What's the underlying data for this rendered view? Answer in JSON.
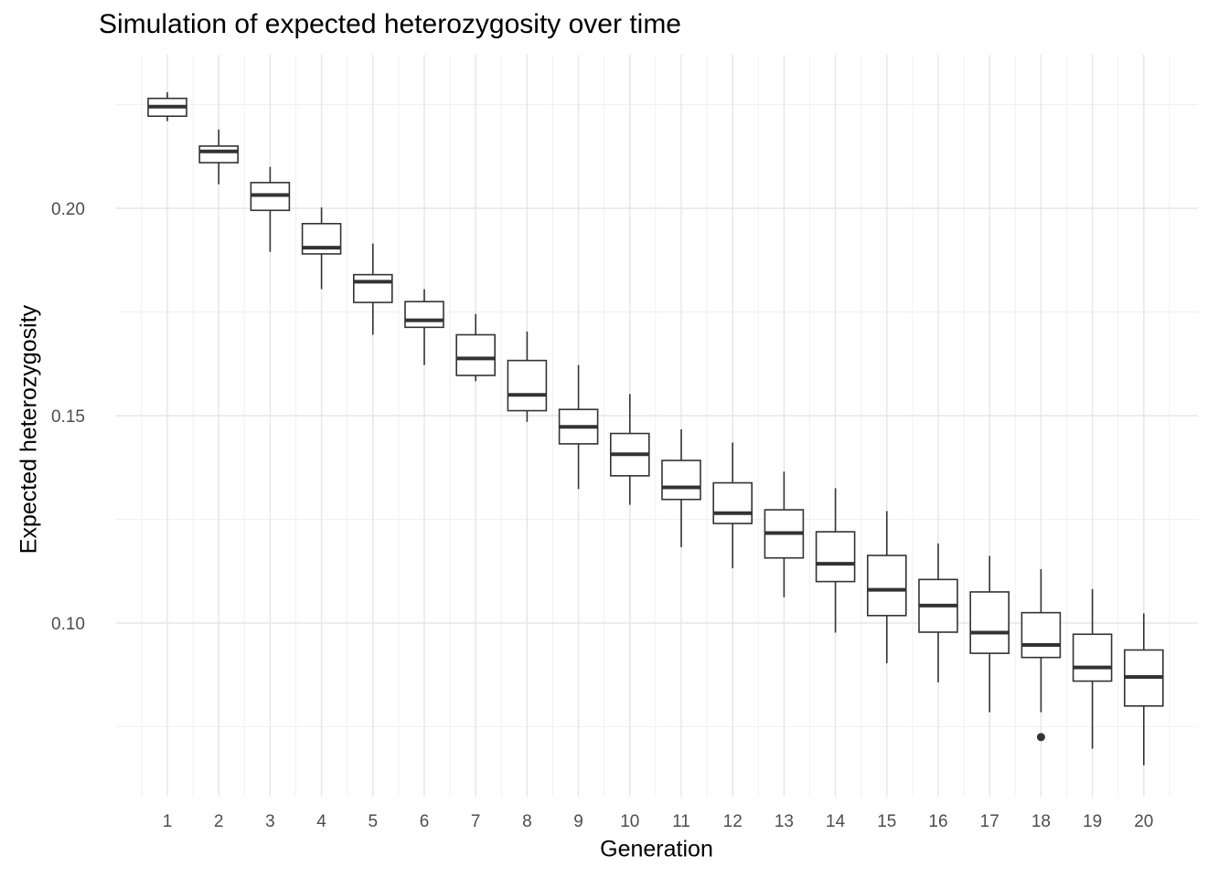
{
  "chart_data": {
    "type": "boxplot",
    "title": "Simulation of expected heterozygosity over time",
    "xlabel": "Generation",
    "ylabel": "Expected heterozygosity",
    "grid": true,
    "ylim": [
      0.065,
      0.232
    ],
    "y_ticks": [
      {
        "value": 0.1,
        "label": "0.10"
      },
      {
        "value": 0.15,
        "label": "0.15"
      },
      {
        "value": 0.2,
        "label": "0.20"
      }
    ],
    "categories": [
      "1",
      "2",
      "3",
      "4",
      "5",
      "6",
      "7",
      "8",
      "9",
      "10",
      "11",
      "12",
      "13",
      "14",
      "15",
      "16",
      "17",
      "18",
      "19",
      "20"
    ],
    "boxes": [
      {
        "min": 0.221,
        "q1": 0.2222,
        "median": 0.2245,
        "q3": 0.2265,
        "max": 0.228,
        "outliers": []
      },
      {
        "min": 0.2058,
        "q1": 0.211,
        "median": 0.2137,
        "q3": 0.215,
        "max": 0.219,
        "outliers": []
      },
      {
        "min": 0.1895,
        "q1": 0.1995,
        "median": 0.2032,
        "q3": 0.2062,
        "max": 0.21,
        "outliers": []
      },
      {
        "min": 0.1805,
        "q1": 0.189,
        "median": 0.1905,
        "q3": 0.1963,
        "max": 0.2002,
        "outliers": []
      },
      {
        "min": 0.1695,
        "q1": 0.1773,
        "median": 0.1823,
        "q3": 0.184,
        "max": 0.1915,
        "outliers": []
      },
      {
        "min": 0.1622,
        "q1": 0.1713,
        "median": 0.173,
        "q3": 0.1775,
        "max": 0.1805,
        "outliers": []
      },
      {
        "min": 0.1583,
        "q1": 0.1597,
        "median": 0.1638,
        "q3": 0.1695,
        "max": 0.1745,
        "outliers": []
      },
      {
        "min": 0.1485,
        "q1": 0.1512,
        "median": 0.155,
        "q3": 0.1633,
        "max": 0.1703,
        "outliers": []
      },
      {
        "min": 0.1323,
        "q1": 0.1432,
        "median": 0.1473,
        "q3": 0.1515,
        "max": 0.1622,
        "outliers": []
      },
      {
        "min": 0.1285,
        "q1": 0.1355,
        "median": 0.1407,
        "q3": 0.1457,
        "max": 0.1552,
        "outliers": []
      },
      {
        "min": 0.1183,
        "q1": 0.1298,
        "median": 0.1327,
        "q3": 0.1392,
        "max": 0.1467,
        "outliers": []
      },
      {
        "min": 0.1132,
        "q1": 0.124,
        "median": 0.1265,
        "q3": 0.1338,
        "max": 0.1435,
        "outliers": []
      },
      {
        "min": 0.1062,
        "q1": 0.1157,
        "median": 0.1217,
        "q3": 0.1273,
        "max": 0.1365,
        "outliers": []
      },
      {
        "min": 0.0977,
        "q1": 0.11,
        "median": 0.1143,
        "q3": 0.122,
        "max": 0.1325,
        "outliers": []
      },
      {
        "min": 0.0903,
        "q1": 0.1018,
        "median": 0.108,
        "q3": 0.1163,
        "max": 0.127,
        "outliers": []
      },
      {
        "min": 0.0857,
        "q1": 0.0978,
        "median": 0.1042,
        "q3": 0.1105,
        "max": 0.1192,
        "outliers": []
      },
      {
        "min": 0.0785,
        "q1": 0.0927,
        "median": 0.0977,
        "q3": 0.1075,
        "max": 0.1162,
        "outliers": []
      },
      {
        "min": 0.0785,
        "q1": 0.0917,
        "median": 0.0947,
        "q3": 0.1025,
        "max": 0.113,
        "outliers": [
          0.0725
        ]
      },
      {
        "min": 0.0697,
        "q1": 0.086,
        "median": 0.0893,
        "q3": 0.0973,
        "max": 0.1082,
        "outliers": []
      },
      {
        "min": 0.0657,
        "q1": 0.08,
        "median": 0.087,
        "q3": 0.0935,
        "max": 0.1023,
        "outliers": []
      }
    ]
  }
}
